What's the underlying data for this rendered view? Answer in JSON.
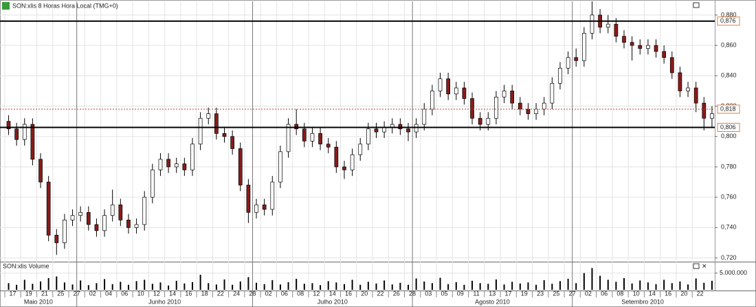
{
  "chart_data": {
    "type": "candlestick",
    "title": "SON:xlis 8 Horas Hora Local (TMG+0)",
    "volume_title": "SON:xlis Volume",
    "categories": [
      "17",
      null,
      "19",
      null,
      "21",
      null,
      "25",
      null,
      "27",
      null,
      "02",
      null,
      "04",
      null,
      "06",
      null,
      "10",
      null,
      "12",
      null,
      "14",
      null,
      "16",
      null,
      "18",
      null,
      "22",
      null,
      "24",
      null,
      "28",
      null,
      "02",
      null,
      "06",
      null,
      "08",
      null,
      "12",
      null,
      "14",
      null,
      "16",
      null,
      "20",
      null,
      "22",
      null,
      "26",
      null,
      "28",
      null,
      "03",
      null,
      "05",
      null,
      "09",
      null,
      "11",
      null,
      "13",
      null,
      "17",
      null,
      "19",
      null,
      "23",
      null,
      "25",
      null,
      "27",
      null,
      "02",
      null,
      "06",
      null,
      "08",
      null,
      "10",
      null,
      "14",
      null,
      "16",
      null,
      "20",
      null,
      "22",
      null,
      null
    ],
    "months": [
      "Maio 2010",
      "Junho 2010",
      "Julho 2010",
      "Agosto 2010",
      "Setembro 2010"
    ],
    "open": [
      0.81,
      0.805,
      0.798,
      0.808,
      0.785,
      0.77,
      0.735,
      0.73,
      0.745,
      0.748,
      0.75,
      0.742,
      0.738,
      0.748,
      0.755,
      0.745,
      0.74,
      0.742,
      0.76,
      0.778,
      0.785,
      0.78,
      0.782,
      0.778,
      0.795,
      0.812,
      0.815,
      0.802,
      0.8,
      0.792,
      0.768,
      0.75,
      0.755,
      0.752,
      0.77,
      0.79,
      0.808,
      0.805,
      0.797,
      0.802,
      0.795,
      0.793,
      0.78,
      0.778,
      0.788,
      0.795,
      0.805,
      0.803,
      0.806,
      0.808,
      0.805,
      0.803,
      0.808,
      0.818,
      0.83,
      0.838,
      0.828,
      0.832,
      0.825,
      0.812,
      0.808,
      0.812,
      0.826,
      0.83,
      0.822,
      0.818,
      0.815,
      0.818,
      0.822,
      0.835,
      0.845,
      0.852,
      0.85,
      0.868,
      0.88,
      0.872,
      0.874,
      0.866,
      0.862,
      0.86,
      0.858,
      0.86,
      0.856,
      0.852,
      0.842,
      0.83,
      0.832,
      0.822,
      0.812
    ],
    "high": [
      0.814,
      0.809,
      0.812,
      0.812,
      0.789,
      0.774,
      0.739,
      0.749,
      0.752,
      0.754,
      0.754,
      0.746,
      0.752,
      0.765,
      0.759,
      0.749,
      0.746,
      0.764,
      0.782,
      0.789,
      0.789,
      0.786,
      0.786,
      0.799,
      0.816,
      0.819,
      0.819,
      0.806,
      0.804,
      0.796,
      0.772,
      0.759,
      0.759,
      0.774,
      0.794,
      0.812,
      0.818,
      0.809,
      0.806,
      0.806,
      0.799,
      0.797,
      0.784,
      0.792,
      0.799,
      0.809,
      0.809,
      0.81,
      0.812,
      0.812,
      0.809,
      0.812,
      0.822,
      0.834,
      0.842,
      0.842,
      0.836,
      0.836,
      0.829,
      0.816,
      0.816,
      0.83,
      0.834,
      0.834,
      0.826,
      0.822,
      0.822,
      0.826,
      0.839,
      0.849,
      0.856,
      0.858,
      0.872,
      0.889,
      0.884,
      0.88,
      0.878,
      0.87,
      0.866,
      0.864,
      0.864,
      0.864,
      0.86,
      0.856,
      0.846,
      0.836,
      0.836,
      0.826,
      0.82
    ],
    "low": [
      0.801,
      0.794,
      0.794,
      0.781,
      0.766,
      0.731,
      0.722,
      0.726,
      0.741,
      0.744,
      0.738,
      0.734,
      0.734,
      0.744,
      0.741,
      0.736,
      0.736,
      0.738,
      0.756,
      0.774,
      0.776,
      0.776,
      0.774,
      0.774,
      0.791,
      0.808,
      0.798,
      0.796,
      0.788,
      0.764,
      0.743,
      0.746,
      0.748,
      0.748,
      0.766,
      0.786,
      0.801,
      0.793,
      0.793,
      0.791,
      0.789,
      0.776,
      0.772,
      0.774,
      0.784,
      0.791,
      0.799,
      0.799,
      0.802,
      0.801,
      0.797,
      0.799,
      0.804,
      0.814,
      0.826,
      0.824,
      0.824,
      0.821,
      0.808,
      0.804,
      0.804,
      0.808,
      0.822,
      0.818,
      0.814,
      0.811,
      0.811,
      0.814,
      0.818,
      0.831,
      0.841,
      0.846,
      0.846,
      0.864,
      0.868,
      0.868,
      0.862,
      0.858,
      0.85,
      0.854,
      0.854,
      0.852,
      0.848,
      0.838,
      0.826,
      0.826,
      0.816,
      0.804,
      0.806
    ],
    "close": [
      0.805,
      0.798,
      0.808,
      0.785,
      0.77,
      0.735,
      0.73,
      0.745,
      0.748,
      0.75,
      0.742,
      0.738,
      0.748,
      0.755,
      0.745,
      0.74,
      0.742,
      0.76,
      0.778,
      0.785,
      0.78,
      0.782,
      0.778,
      0.795,
      0.812,
      0.815,
      0.802,
      0.8,
      0.792,
      0.768,
      0.75,
      0.755,
      0.752,
      0.77,
      0.79,
      0.808,
      0.805,
      0.797,
      0.802,
      0.795,
      0.793,
      0.78,
      0.778,
      0.788,
      0.795,
      0.805,
      0.803,
      0.806,
      0.808,
      0.805,
      0.803,
      0.808,
      0.818,
      0.83,
      0.838,
      0.828,
      0.832,
      0.825,
      0.812,
      0.808,
      0.812,
      0.826,
      0.83,
      0.822,
      0.818,
      0.815,
      0.818,
      0.822,
      0.835,
      0.845,
      0.852,
      0.85,
      0.868,
      0.88,
      0.872,
      0.874,
      0.866,
      0.862,
      0.86,
      0.858,
      0.86,
      0.856,
      0.852,
      0.842,
      0.83,
      0.832,
      0.822,
      0.812,
      0.815
    ],
    "volume": [
      2000000,
      1500000,
      3000000,
      1800000,
      2500000,
      3500000,
      4000000,
      2200000,
      1600000,
      2800000,
      1400000,
      2000000,
      3200000,
      1700000,
      2400000,
      1500000,
      2600000,
      3000000,
      1800000,
      2200000,
      1300000,
      2700000,
      1900000,
      2300000,
      4500000,
      2000000,
      1600000,
      3100000,
      1500000,
      2500000,
      3800000,
      2100000,
      1700000,
      2900000,
      1600000,
      2300000,
      3300000,
      1800000,
      2000000,
      1400000,
      2600000,
      2200000,
      1700000,
      3000000,
      1500000,
      2400000,
      1900000,
      2800000,
      1600000,
      2100000,
      1500000,
      3400000,
      2500000,
      2000000,
      3600000,
      1700000,
      2300000,
      1500000,
      2700000,
      2000000,
      1800000,
      3100000,
      1600000,
      2400000,
      1900000,
      2200000,
      1500000,
      2900000,
      1800000,
      2600000,
      3300000,
      2000000,
      5000000,
      6500000,
      4200000,
      3000000,
      2400000,
      3500000,
      1900000,
      2800000,
      2200000,
      1700000,
      3000000,
      2000000,
      2500000,
      1600000,
      3400000,
      2100000,
      2700000
    ],
    "up_color": "#ffffff",
    "down_color": "#8b1a1a",
    "ylim": [
      0.718,
      0.889
    ],
    "yticks": [
      {
        "value": 0.72,
        "label": "0,720"
      },
      {
        "value": 0.74,
        "label": "0,740"
      },
      {
        "value": 0.76,
        "label": "0,760"
      },
      {
        "value": 0.78,
        "label": "0,780"
      },
      {
        "value": 0.8,
        "label": "0,800"
      },
      {
        "value": 0.82,
        "label": "0,820"
      },
      {
        "value": 0.84,
        "label": "0,840"
      },
      {
        "value": 0.86,
        "label": "0,860"
      },
      {
        "value": 0.88,
        "label": "0,880"
      }
    ],
    "levels": [
      {
        "value": 0.876,
        "label": "0,876",
        "style": "solid",
        "color": "#000000"
      },
      {
        "value": 0.818,
        "label": "0,818",
        "style": "dotted",
        "color": "#c0392b"
      },
      {
        "value": 0.806,
        "label": "0,806",
        "style": "solid",
        "color": "#000000"
      }
    ],
    "volume_ylim": [
      0,
      8000000
    ],
    "volume_ticks": [
      {
        "value": 5000000,
        "label": "5.000.000"
      }
    ],
    "grid": true
  }
}
